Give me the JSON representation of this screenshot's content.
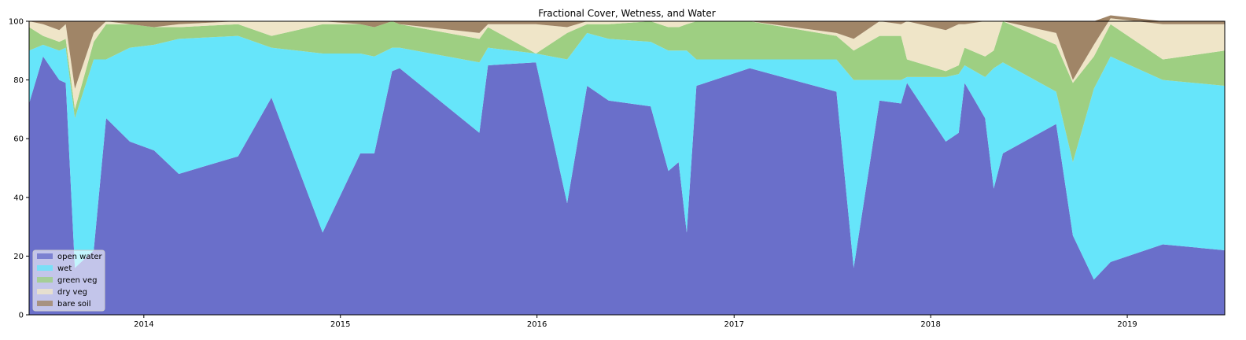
{
  "chart_data": {
    "type": "area",
    "stacked": true,
    "title": "Fractional Cover, Wetness, and Water",
    "xlabel": "",
    "ylabel": "",
    "ylim": [
      0,
      100
    ],
    "xlim": [
      "2013-06-02",
      "2019-07-01"
    ],
    "yticks": [
      0,
      20,
      40,
      60,
      80,
      100
    ],
    "xticks": [
      "2014",
      "2015",
      "2016",
      "2017",
      "2018",
      "2019"
    ],
    "legend_position": "lower-left",
    "grid": false,
    "dates": [
      "2013-06-02",
      "2013-06-28",
      "2013-07-28",
      "2013-08-09",
      "2013-08-26",
      "2013-09-30",
      "2013-10-23",
      "2013-12-06",
      "2014-01-20",
      "2014-03-07",
      "2014-06-25",
      "2014-08-26",
      "2014-11-29",
      "2015-02-07",
      "2015-03-05",
      "2015-04-07",
      "2015-04-21",
      "2015-09-16",
      "2015-10-02",
      "2015-12-30",
      "2016-02-26",
      "2016-04-03",
      "2016-05-13",
      "2016-07-30",
      "2016-09-01",
      "2016-09-20",
      "2016-10-05",
      "2016-10-23",
      "2017-01-30",
      "2017-07-10",
      "2017-08-11",
      "2017-09-28",
      "2017-11-07",
      "2017-11-18",
      "2018-01-29",
      "2018-02-22",
      "2018-03-05",
      "2018-04-12",
      "2018-04-28",
      "2018-05-15",
      "2018-08-22",
      "2018-09-22",
      "2018-10-31",
      "2018-12-01",
      "2019-03-08",
      "2019-07-01"
    ],
    "series": [
      {
        "name": "open water",
        "color": "#6a6fca",
        "values": [
          72,
          88,
          80,
          79,
          16,
          22,
          67,
          59,
          56,
          48,
          54,
          74,
          28,
          55,
          55,
          83,
          84,
          62,
          85,
          86,
          38,
          78,
          73,
          71,
          49,
          52,
          28,
          78,
          84,
          76,
          16,
          73,
          72,
          79,
          59,
          62,
          79,
          67,
          43,
          55,
          65,
          27,
          12,
          18,
          24,
          22
        ]
      },
      {
        "name": "wet",
        "color": "#66e5fa",
        "values": [
          18,
          4,
          10,
          12,
          51,
          65,
          20,
          32,
          36,
          46,
          41,
          17,
          61,
          34,
          33,
          8,
          7,
          24,
          6,
          3,
          49,
          18,
          21,
          22,
          41,
          38,
          62,
          9,
          3,
          11,
          64,
          7,
          8,
          2,
          22,
          20,
          6,
          14,
          41,
          31,
          11,
          25,
          65,
          70,
          56,
          56
        ]
      },
      {
        "name": "green veg",
        "color": "#9ecf82",
        "values": [
          8,
          3,
          3,
          3,
          3,
          6,
          12,
          8,
          6,
          4,
          4,
          4,
          10,
          10,
          10,
          9,
          8,
          8,
          7,
          0,
          9,
          3,
          5,
          7,
          8,
          8,
          9,
          13,
          13,
          8,
          10,
          15,
          15,
          6,
          2,
          3,
          6,
          7,
          6,
          14,
          16,
          27,
          11,
          11,
          7,
          12
        ]
      },
      {
        "name": "dry veg",
        "color": "#efe5c8",
        "values": [
          2,
          4,
          4,
          5,
          7,
          3,
          1,
          0,
          0,
          1,
          1,
          5,
          1,
          0,
          0,
          0,
          0,
          2,
          1,
          10,
          2,
          1,
          1,
          0,
          2,
          2,
          1,
          0,
          0,
          1,
          4,
          5,
          4,
          13,
          14,
          14,
          8,
          12,
          10,
          0,
          4,
          1,
          4,
          2,
          12,
          9
        ]
      },
      {
        "name": "bare soil",
        "color": "#a08567",
        "values": [
          0,
          1,
          3,
          1,
          23,
          4,
          0,
          1,
          2,
          1,
          0,
          0,
          0,
          1,
          2,
          0,
          1,
          4,
          1,
          1,
          2,
          0,
          0,
          0,
          0,
          0,
          0,
          0,
          0,
          4,
          6,
          0,
          1,
          0,
          3,
          1,
          1,
          0,
          0,
          0,
          4,
          20,
          8,
          1,
          1,
          1
        ]
      }
    ]
  }
}
